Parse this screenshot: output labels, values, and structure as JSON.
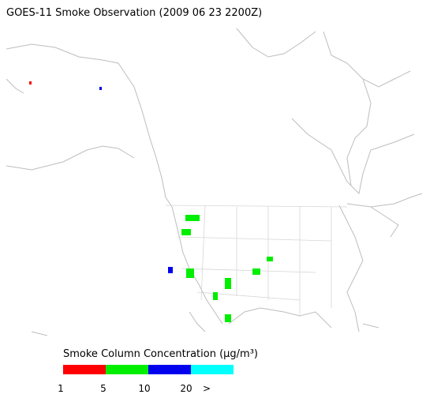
{
  "header": {
    "title": "GOES-11 Smoke Observation (2009 06 23  2200Z)"
  },
  "legend": {
    "title": "Smoke Column Concentration (μg/m³)",
    "colors": [
      "#ff0000",
      "#00ee00",
      "#0000ee",
      "#00ffff"
    ],
    "ticks": [
      "1",
      "5",
      "10",
      "20",
      ">"
    ]
  }
}
